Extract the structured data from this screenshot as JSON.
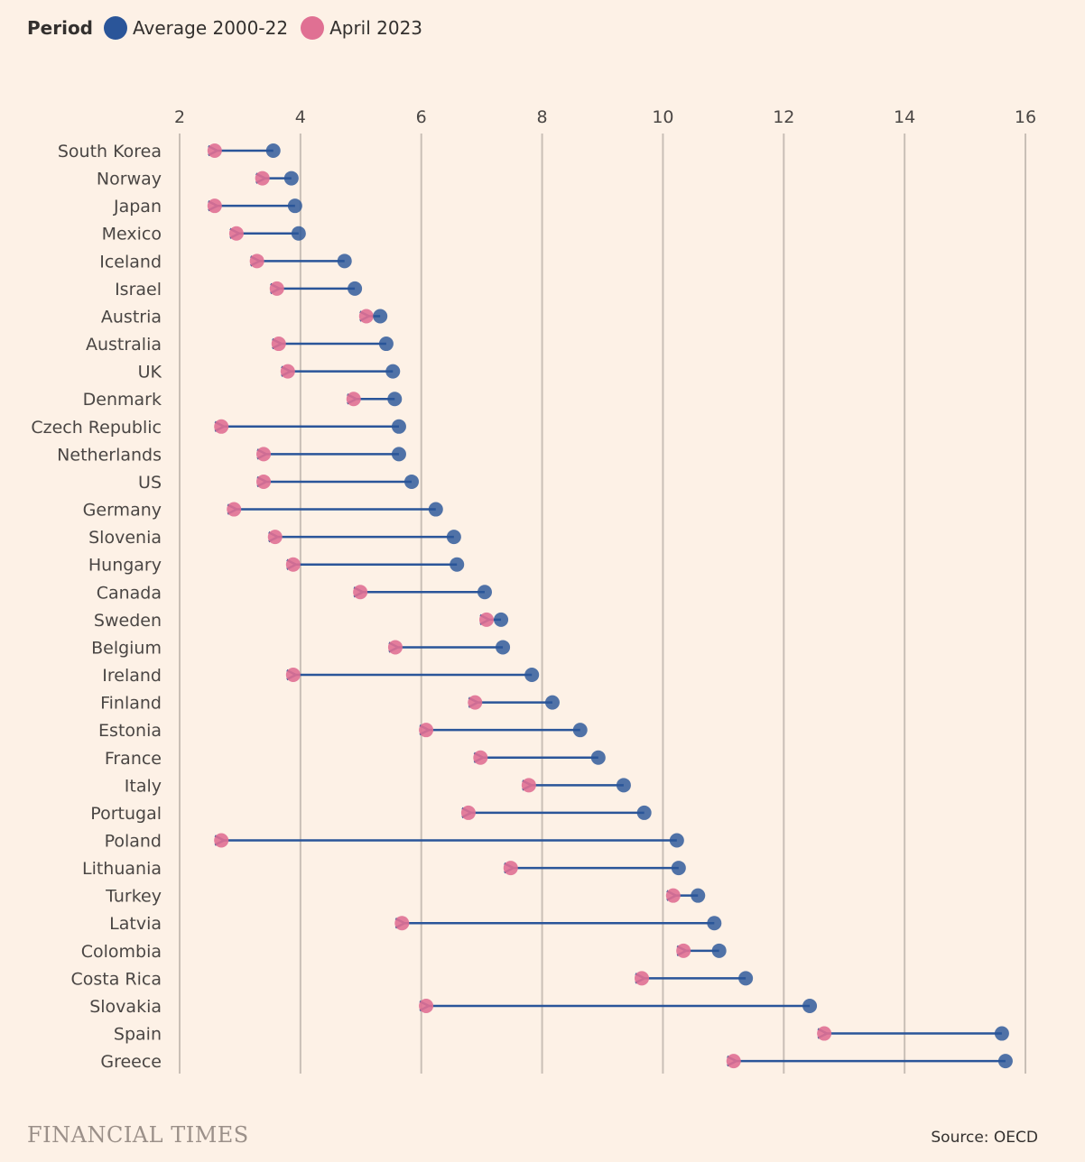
{
  "legend": {
    "title": "Period",
    "series": [
      {
        "label": "Average 2000-22",
        "color": "#2a5599"
      },
      {
        "label": "April 2023",
        "color": "#e07093"
      }
    ]
  },
  "footer": {
    "logo": "FINANCIAL TIMES",
    "source": "Source: OECD"
  },
  "chart_data": {
    "type": "dumbbell",
    "xlim": [
      2,
      16
    ],
    "xticks": [
      2,
      4,
      6,
      8,
      10,
      12,
      14,
      16
    ],
    "grid": true,
    "legend_position": "top-left",
    "categories": [
      "South Korea",
      "Norway",
      "Japan",
      "Mexico",
      "Iceland",
      "Israel",
      "Austria",
      "Australia",
      "UK",
      "Denmark",
      "Czech Republic",
      "Netherlands",
      "US",
      "Germany",
      "Slovenia",
      "Hungary",
      "Canada",
      "Sweden",
      "Belgium",
      "Ireland",
      "Finland",
      "Estonia",
      "France",
      "Italy",
      "Portugal",
      "Poland",
      "Lithuania",
      "Turkey",
      "Latvia",
      "Colombia",
      "Costa Rica",
      "Slovakia",
      "Spain",
      "Greece"
    ],
    "series": [
      {
        "name": "Average 2000-22",
        "values": [
          3.55,
          3.85,
          3.91,
          3.97,
          4.73,
          4.9,
          5.32,
          5.42,
          5.53,
          5.56,
          5.63,
          5.63,
          5.84,
          6.24,
          6.54,
          6.59,
          7.05,
          7.32,
          7.35,
          7.83,
          8.17,
          8.63,
          8.93,
          9.35,
          9.69,
          10.23,
          10.26,
          10.58,
          10.85,
          10.93,
          11.37,
          12.43,
          15.61,
          15.67
        ]
      },
      {
        "name": "April 2023",
        "values": [
          2.58,
          3.37,
          2.58,
          2.94,
          3.28,
          3.61,
          5.09,
          3.64,
          3.79,
          4.88,
          2.69,
          3.39,
          3.39,
          2.9,
          3.58,
          3.88,
          4.99,
          7.08,
          5.57,
          3.88,
          6.89,
          6.08,
          6.98,
          7.78,
          6.78,
          2.69,
          7.48,
          10.17,
          5.68,
          10.34,
          9.65,
          6.08,
          12.67,
          11.17
        ]
      }
    ]
  }
}
